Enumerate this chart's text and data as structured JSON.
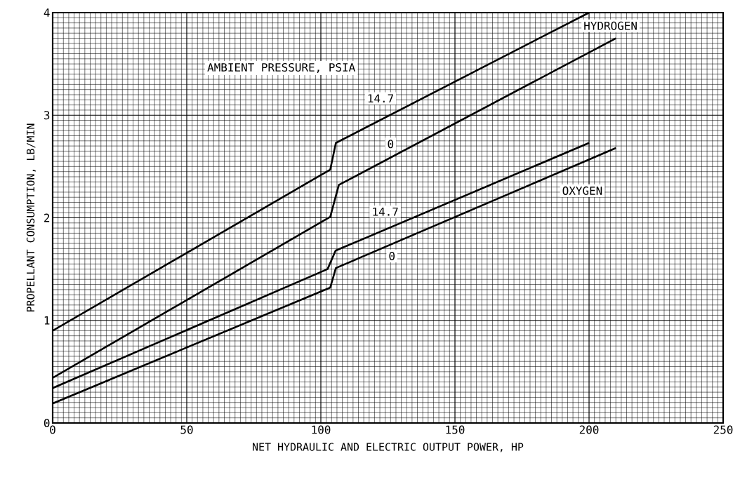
{
  "chart_data": {
    "type": "line",
    "xlabel": "NET HYDRAULIC AND ELECTRIC OUTPUT POWER, HP",
    "ylabel": "PROPELLANT CONSUMPTION, LB/MIN",
    "xlim": [
      0,
      250
    ],
    "ylim": [
      0,
      4
    ],
    "xticks": [
      0,
      50,
      100,
      150,
      200,
      250
    ],
    "yticks": [
      0,
      1,
      2,
      3,
      4
    ],
    "grid": true,
    "marker": "none",
    "line_style": "solid",
    "series": [
      {
        "color": "#000000",
        "x": [
          0,
          103.5,
          105.6,
          200
        ],
        "values": [
          0.9,
          2.47,
          2.73,
          4.0
        ]
      },
      {
        "color": "#000000",
        "x": [
          0,
          103.5,
          106.7,
          210
        ],
        "values": [
          0.44,
          2.01,
          2.32,
          3.75
        ]
      },
      {
        "color": "#000000",
        "x": [
          0,
          102.5,
          105.5,
          200
        ],
        "values": [
          0.34,
          1.5,
          1.68,
          2.73
        ]
      },
      {
        "color": "#000000",
        "x": [
          0,
          103.5,
          105.6,
          210
        ],
        "values": [
          0.19,
          1.32,
          1.51,
          2.68
        ]
      }
    ],
    "annotations": [
      "AMBIENT PRESSURE, PSIA",
      "HYDROGEN",
      "14.7",
      "0",
      "14.7",
      "0",
      "OXYGEN"
    ]
  }
}
